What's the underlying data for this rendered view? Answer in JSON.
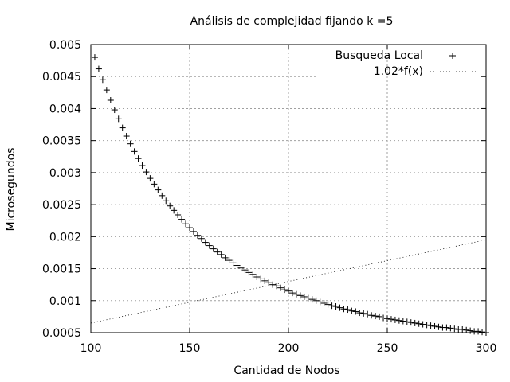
{
  "chart_data": {
    "type": "scatter",
    "title": "Análisis de complejidad fijando k =5",
    "xlabel": "Cantidad de Nodos",
    "ylabel": "Microsegundos",
    "xlim": [
      100,
      300
    ],
    "ylim": [
      0.0005,
      0.005
    ],
    "xticks": [
      "100",
      "150",
      "200",
      "250",
      "300"
    ],
    "yticks": [
      "0.0005",
      "0.001",
      "0.0015",
      "0.002",
      "0.0025",
      "0.003",
      "0.0035",
      "0.004",
      "0.0045",
      "0.005"
    ],
    "grid": true,
    "legend_position": "top-right",
    "series": [
      {
        "name": "Busqueda Local",
        "marker": "plus",
        "x": [
          102,
          104,
          106,
          108,
          110,
          112,
          114,
          116,
          118,
          120,
          122,
          124,
          126,
          128,
          130,
          132,
          134,
          136,
          138,
          140,
          142,
          144,
          146,
          148,
          150,
          152,
          154,
          156,
          158,
          160,
          162,
          164,
          166,
          168,
          170,
          172,
          174,
          176,
          178,
          180,
          182,
          184,
          186,
          188,
          190,
          192,
          194,
          196,
          198,
          200,
          202,
          204,
          206,
          208,
          210,
          212,
          214,
          216,
          218,
          220,
          222,
          224,
          226,
          228,
          230,
          232,
          234,
          236,
          238,
          240,
          242,
          244,
          246,
          248,
          250,
          252,
          254,
          256,
          258,
          260,
          262,
          264,
          266,
          268,
          270,
          272,
          274,
          276,
          278,
          280,
          282,
          284,
          286,
          288,
          290,
          292,
          294,
          296,
          298,
          300
        ],
        "y": [
          0.0048,
          0.00462,
          0.00445,
          0.00429,
          0.00413,
          0.00398,
          0.00384,
          0.0037,
          0.00357,
          0.00345,
          0.00333,
          0.00322,
          0.00311,
          0.00301,
          0.00291,
          0.00282,
          0.00273,
          0.00264,
          0.00256,
          0.00248,
          0.00241,
          0.00234,
          0.00227,
          0.0022,
          0.00214,
          0.00208,
          0.00202,
          0.00197,
          0.00191,
          0.00186,
          0.00181,
          0.00176,
          0.00172,
          0.00167,
          0.00163,
          0.00159,
          0.00155,
          0.00151,
          0.00148,
          0.00144,
          0.00141,
          0.00137,
          0.00134,
          0.00131,
          0.00128,
          0.00125,
          0.00123,
          0.0012,
          0.00117,
          0.00115,
          0.00112,
          0.0011,
          0.00108,
          0.00106,
          0.00104,
          0.00102,
          0.001,
          0.00098,
          0.00096,
          0.00094,
          0.00092,
          0.00091,
          0.00089,
          0.00087,
          0.00086,
          0.00084,
          0.00083,
          0.00081,
          0.0008,
          0.00079,
          0.00077,
          0.00076,
          0.00075,
          0.00073,
          0.00072,
          0.00071,
          0.0007,
          0.00069,
          0.00068,
          0.00067,
          0.00066,
          0.00065,
          0.00064,
          0.00063,
          0.00062,
          0.00061,
          0.0006,
          0.00059,
          0.00058,
          0.00058,
          0.00057,
          0.00056,
          0.00055,
          0.00055,
          0.00054,
          0.00053,
          0.00052,
          0.00052,
          0.00051,
          0.0005
        ]
      },
      {
        "name": "1.02*f(x)",
        "line_style": "dotted",
        "x": [
          100,
          300
        ],
        "y": [
          0.00065,
          0.00195
        ]
      }
    ]
  }
}
